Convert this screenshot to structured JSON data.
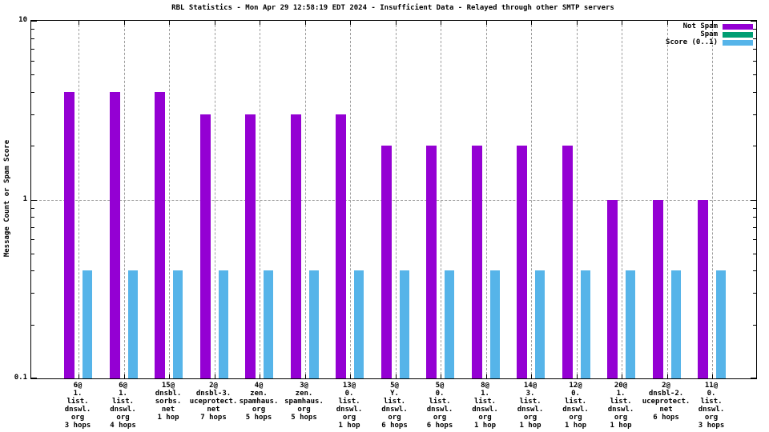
{
  "chart_data": {
    "type": "bar",
    "title": "RBL Statistics - Mon Apr 29 12:58:19 EDT 2024 - Insufficient Data - Relayed through other SMTP servers",
    "ylabel": "Message Count or Spam Score",
    "yscale": "log",
    "ylim": [
      0.1,
      10
    ],
    "ytick_labels": [
      "10",
      "1",
      "0.1"
    ],
    "grid": "on",
    "legend_position": "top-right-inside",
    "colors": {
      "not_spam": "#9400d3",
      "spam": "#009e73",
      "score": "#56b4e9",
      "grid": "#9e9e9e",
      "border": "#000000"
    },
    "legend": [
      {
        "label": "Not Spam",
        "color_key": "not_spam"
      },
      {
        "label": "Spam",
        "color_key": "spam"
      },
      {
        "label": "Score (0..1)",
        "color_key": "score"
      }
    ],
    "categories": [
      {
        "lines": [
          "6@",
          "1.",
          "list.",
          "dnswl.",
          "org",
          "3 hops"
        ]
      },
      {
        "lines": [
          "6@",
          "1.",
          "list.",
          "dnswl.",
          "org",
          "4 hops"
        ]
      },
      {
        "lines": [
          "15@",
          "dnsbl.",
          "sorbs.",
          "net",
          "1 hop"
        ]
      },
      {
        "lines": [
          "2@",
          "dnsbl-3.",
          "uceprotect.",
          "net",
          "7 hops"
        ]
      },
      {
        "lines": [
          "4@",
          "zen.",
          "spamhaus.",
          "org",
          "5 hops"
        ]
      },
      {
        "lines": [
          "3@",
          "zen.",
          "spamhaus.",
          "org",
          "5 hops"
        ]
      },
      {
        "lines": [
          "13@",
          "0.",
          "list.",
          "dnswl.",
          "org",
          "1 hop"
        ]
      },
      {
        "lines": [
          "5@",
          "Y.",
          "list.",
          "dnswl.",
          "org",
          "6 hops"
        ]
      },
      {
        "lines": [
          "5@",
          "0.",
          "list.",
          "dnswl.",
          "org",
          "6 hops"
        ]
      },
      {
        "lines": [
          "8@",
          "1.",
          "list.",
          "dnswl.",
          "org",
          "1 hop"
        ]
      },
      {
        "lines": [
          "14@",
          "3.",
          "list.",
          "dnswl.",
          "org",
          "1 hop"
        ]
      },
      {
        "lines": [
          "12@",
          "0.",
          "list.",
          "dnswl.",
          "org",
          "1 hop"
        ]
      },
      {
        "lines": [
          "20@",
          "1.",
          "list.",
          "dnswl.",
          "org",
          "1 hop"
        ]
      },
      {
        "lines": [
          "2@",
          "dnsbl-2.",
          "uceprotect.",
          "net",
          "6 hops"
        ]
      },
      {
        "lines": [
          "11@",
          "0.",
          "list.",
          "dnswl.",
          "org",
          "3 hops"
        ]
      }
    ],
    "series": [
      {
        "name": "Not Spam",
        "color_key": "not_spam",
        "values": [
          4,
          4,
          4,
          3,
          3,
          3,
          3,
          2,
          2,
          2,
          2,
          2,
          1,
          1,
          1
        ]
      },
      {
        "name": "Spam",
        "color_key": "spam",
        "values": [
          0,
          0,
          0,
          0,
          0,
          0,
          0,
          0,
          0,
          0,
          0,
          0,
          0,
          0,
          0
        ]
      },
      {
        "name": "Score (0..1)",
        "color_key": "score",
        "values": [
          0.4,
          0.4,
          0.4,
          0.4,
          0.4,
          0.4,
          0.4,
          0.4,
          0.4,
          0.4,
          0.4,
          0.4,
          0.4,
          0.4,
          0.4
        ]
      }
    ]
  }
}
